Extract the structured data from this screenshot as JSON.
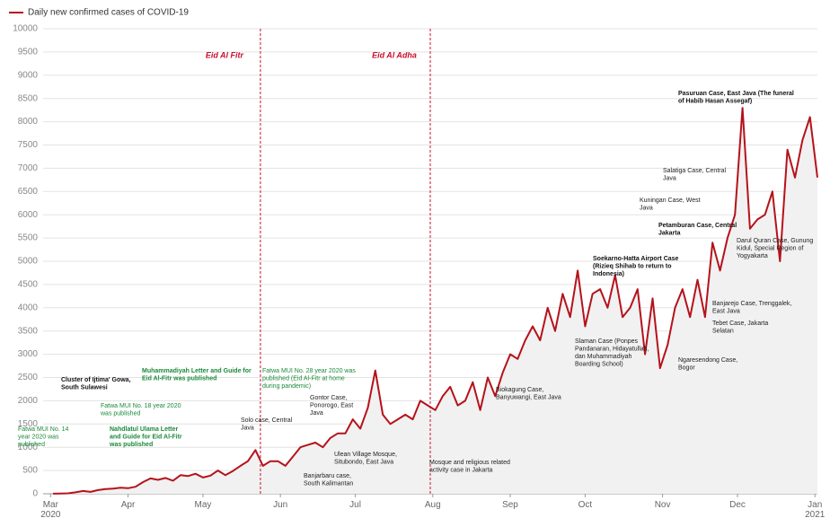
{
  "chart_data": {
    "type": "line",
    "legend_label": "Daily new confirmed cases of COVID-19",
    "x": [
      1,
      4,
      7,
      10,
      13,
      16,
      19,
      22,
      25,
      28,
      31,
      34,
      37,
      40,
      43,
      46,
      49,
      52,
      55,
      58,
      61,
      64,
      67,
      70,
      73,
      76,
      79,
      82,
      85,
      88,
      91,
      94,
      97,
      100,
      103,
      106,
      109,
      112,
      115,
      118,
      121,
      124,
      127,
      130,
      133,
      136,
      139,
      142,
      145,
      148,
      151,
      154,
      157,
      160,
      163,
      166,
      169,
      172,
      175,
      178,
      181,
      184,
      187,
      190,
      193,
      196,
      199,
      202,
      205,
      208,
      211,
      214,
      217,
      220,
      223,
      226,
      229,
      232,
      235,
      238,
      241,
      244,
      247,
      250,
      253,
      256,
      259,
      262,
      265,
      268,
      271,
      274,
      277,
      280,
      283,
      286,
      289,
      292,
      295,
      298,
      301,
      304,
      307
    ],
    "series": [
      {
        "name": "Daily new confirmed cases of COVID-19",
        "color": "#b5121b",
        "values": [
          2,
          5,
          10,
          30,
          60,
          40,
          80,
          100,
          110,
          130,
          120,
          150,
          250,
          330,
          300,
          340,
          280,
          400,
          380,
          430,
          350,
          390,
          500,
          400,
          490,
          600,
          700,
          940,
          600,
          700,
          700,
          600,
          800,
          1000,
          1050,
          1100,
          1000,
          1200,
          1300,
          1300,
          1600,
          1400,
          1850,
          2650,
          1700,
          1500,
          1600,
          1700,
          1600,
          2000,
          1900,
          1800,
          2100,
          2300,
          1900,
          2000,
          2400,
          1800,
          2500,
          2100,
          2600,
          3000,
          2900,
          3300,
          3600,
          3300,
          4000,
          3500,
          4300,
          3800,
          4800,
          3600,
          4300,
          4400,
          4000,
          4700,
          3800,
          4000,
          4400,
          3000,
          4200,
          2700,
          3200,
          4000,
          4400,
          3800,
          4600,
          3800,
          5400,
          4800,
          5500,
          6000,
          8300,
          5700,
          5900,
          6000,
          6500,
          5000,
          7400,
          6800,
          7600,
          8100,
          6800
        ]
      }
    ],
    "xlim": [
      -3,
      307
    ],
    "xticks": [
      {
        "value": 0,
        "label": "Mar\n2020"
      },
      {
        "value": 31,
        "label": "Apr"
      },
      {
        "value": 61,
        "label": "May"
      },
      {
        "value": 92,
        "label": "Jun"
      },
      {
        "value": 122,
        "label": "Jul"
      },
      {
        "value": 153,
        "label": "Aug"
      },
      {
        "value": 184,
        "label": "Sep"
      },
      {
        "value": 214,
        "label": "Oct"
      },
      {
        "value": 245,
        "label": "Nov"
      },
      {
        "value": 275,
        "label": "Dec"
      },
      {
        "value": 306,
        "label": "Jan\n2021"
      }
    ],
    "ylim": [
      0,
      10000
    ],
    "yticks": [
      0,
      500,
      1000,
      1500,
      2000,
      2500,
      3000,
      3500,
      4000,
      4500,
      5000,
      5500,
      6000,
      6500,
      7000,
      7500,
      8000,
      8500,
      9000,
      9500,
      10000
    ],
    "grid": true,
    "event_lines": [
      {
        "x": 84,
        "label": "Eid Al Fitr"
      },
      {
        "x": 152,
        "label": "Eid Al Adha"
      }
    ],
    "annotations": [
      {
        "lines": [
          "Fatwa MUI No. 14",
          "year 2020 was",
          "published"
        ],
        "color": "#1a8a3a",
        "bold": false
      },
      {
        "lines": [
          "Cluster of Ijtima' Gowa,",
          "South Sulawesi"
        ],
        "color": "#111",
        "bold": true
      },
      {
        "lines": [
          "Fatwa MUI No. 18 year 2020",
          "was published"
        ],
        "color": "#1a8a3a",
        "bold": false
      },
      {
        "lines": [
          "Nahdlatul Ulama Letter",
          "and Guide for Eid Al-Fitr",
          "was published"
        ],
        "color": "#1a8a3a",
        "bold": true
      },
      {
        "lines": [
          "Muhammadiyah Letter and Guide for",
          "Eid Al-Fitr was published"
        ],
        "color": "#1a8a3a",
        "bold": true
      },
      {
        "lines": [
          "Fatwa MUI No. 28 year 2020 was",
          "published (Eid Al-Fitr at home",
          "during pandemic)"
        ],
        "color": "#1a8a3a",
        "bold": false
      },
      {
        "lines": [
          "Solo case, Central",
          "Java"
        ],
        "color": "#222",
        "bold": false
      },
      {
        "lines": [
          "Gontor Case,",
          "Ponorogo, East",
          "Java"
        ],
        "color": "#222",
        "bold": false
      },
      {
        "lines": [
          "Ulean Village Mosque,",
          "Situbondo, East Java"
        ],
        "color": "#222",
        "bold": false
      },
      {
        "lines": [
          "Banjarbaru case,",
          "South Kalimantan"
        ],
        "color": "#222",
        "bold": false
      },
      {
        "lines": [
          "Mosque and religious related",
          "activity case in Jakarta"
        ],
        "color": "#222",
        "bold": false
      },
      {
        "lines": [
          "Biokagung Case,",
          "Banyuwangi, East Java"
        ],
        "color": "#222",
        "bold": false
      },
      {
        "lines": [
          "Slaman Case (Ponpes",
          "Pandanaran, Hidayatullah,",
          "dan Muhammadiyah",
          "Boarding School)"
        ],
        "color": "#222",
        "bold": false
      },
      {
        "lines": [
          "Ngaresendong Case,",
          "Bogor"
        ],
        "color": "#222",
        "bold": false
      },
      {
        "lines": [
          "Soekarno-Hatta Airport Case",
          "(Rizieq Shihab to return to",
          "Indonesia)"
        ],
        "color": "#111",
        "bold": true
      },
      {
        "lines": [
          "Petamburan Case, Central",
          "Jakarta"
        ],
        "color": "#111",
        "bold": true
      },
      {
        "lines": [
          "Kuningan Case, West",
          "Java"
        ],
        "color": "#222",
        "bold": false
      },
      {
        "lines": [
          "Salatiga Case, Central",
          "Java"
        ],
        "color": "#222",
        "bold": false
      },
      {
        "lines": [
          "Pasuruan Case, East Java (The funeral",
          "of Habib Hasan Assegaf)"
        ],
        "color": "#111",
        "bold": true
      },
      {
        "lines": [
          "Darul Quran Case, Gunung",
          "Kidul, Special Region of",
          "Yogyakarta"
        ],
        "color": "#222",
        "bold": false
      },
      {
        "lines": [
          "Banjarejo Case, Trenggalek,",
          "East Java"
        ],
        "color": "#222",
        "bold": false
      },
      {
        "lines": [
          "Tebet Case, Jakarta",
          "Selatan"
        ],
        "color": "#222",
        "bold": false
      }
    ]
  }
}
